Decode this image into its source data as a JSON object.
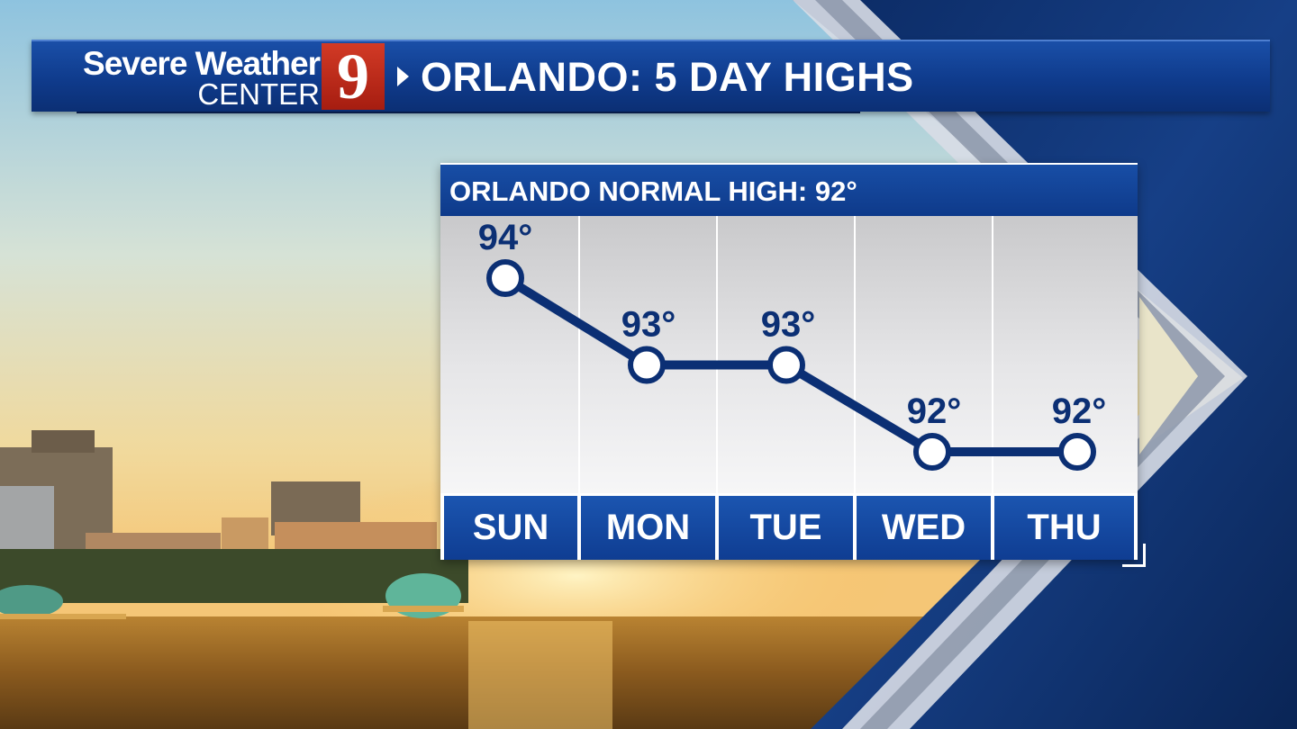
{
  "header": {
    "logo_line1": "Severe Weather",
    "logo_line2": "CENTER",
    "logo_number": "9",
    "title": "ORLANDO: 5 DAY HIGHS"
  },
  "chart_header": "ORLANDO NORMAL HIGH: 92°",
  "chart_data": {
    "type": "line",
    "title": "ORLANDO NORMAL HIGH: 92°",
    "categories": [
      "SUN",
      "MON",
      "TUE",
      "WED",
      "THU"
    ],
    "series": [
      {
        "values": [
          94,
          93,
          93,
          92,
          92
        ],
        "labels": [
          "94°",
          "93°",
          "93°",
          "92°",
          "92°"
        ]
      }
    ],
    "xlabel": "",
    "ylabel": "",
    "grid": true,
    "legend": "none"
  },
  "colors": {
    "brand_blue": "#0f3b8c",
    "line_navy": "#0b2f74",
    "logo_red": "#b8271a",
    "point_fill": "#ffffff"
  }
}
